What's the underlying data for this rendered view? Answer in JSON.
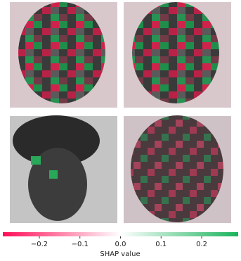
{
  "chart_data": {
    "type": "colorbar",
    "xlabel": "SHAP value",
    "xlim": [
      -0.29,
      0.29
    ],
    "xticks": [
      {
        "value": -0.2,
        "label": "−0.2"
      },
      {
        "value": -0.1,
        "label": "−0.1"
      },
      {
        "value": 0.0,
        "label": "0.0"
      },
      0.1,
      0.2
    ],
    "colors": [
      "#ff0d57",
      "#ffffff",
      "#19b35c"
    ]
  }
}
